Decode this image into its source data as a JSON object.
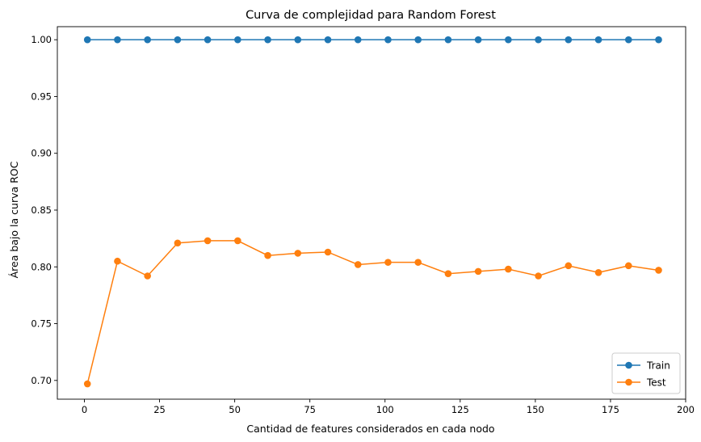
{
  "chart_data": {
    "type": "line",
    "title": "Curva de complejidad para Random Forest",
    "xlabel": "Cantidad de features considerados en cada nodo",
    "ylabel": "Área bajo la curva ROC",
    "xlim": [
      -9,
      200
    ],
    "ylim": [
      0.6835,
      1.0115
    ],
    "xticks": [
      0,
      25,
      50,
      75,
      100,
      125,
      150,
      175,
      200
    ],
    "yticks": [
      0.7,
      0.75,
      0.8,
      0.85,
      0.9,
      0.95,
      1.0
    ],
    "grid": false,
    "legend_position": "bottom-right",
    "x": [
      1,
      11,
      21,
      31,
      41,
      51,
      61,
      71,
      81,
      91,
      101,
      111,
      121,
      131,
      141,
      151,
      161,
      171,
      181,
      191
    ],
    "series": [
      {
        "name": "Train",
        "color": "#1f77b4",
        "values": [
          1.0,
          1.0,
          1.0,
          1.0,
          1.0,
          1.0,
          1.0,
          1.0,
          1.0,
          1.0,
          1.0,
          1.0,
          1.0,
          1.0,
          1.0,
          1.0,
          1.0,
          1.0,
          1.0,
          1.0
        ]
      },
      {
        "name": "Test",
        "color": "#ff7f0e",
        "values": [
          0.697,
          0.805,
          0.792,
          0.821,
          0.823,
          0.823,
          0.81,
          0.812,
          0.813,
          0.802,
          0.804,
          0.804,
          0.794,
          0.796,
          0.798,
          0.792,
          0.801,
          0.795,
          0.801,
          0.797
        ]
      }
    ]
  }
}
